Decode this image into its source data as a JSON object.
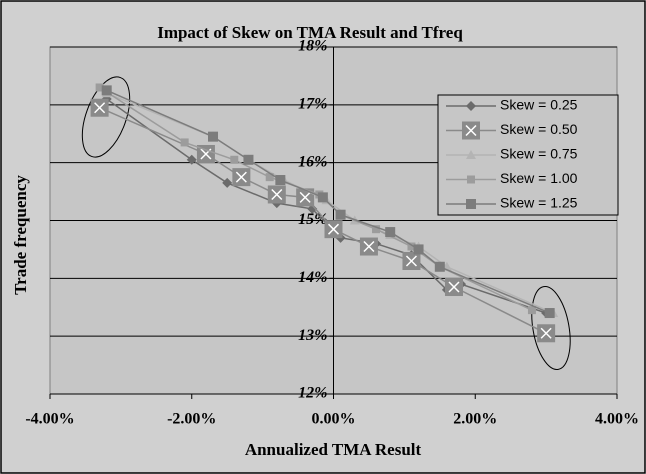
{
  "chart_data": {
    "type": "line",
    "title": "Impact of Skew on TMA Result and Tfreq",
    "x_label": "Annualized TMA Result",
    "y_label": "Trade   frequency",
    "xlim": [
      -4,
      4
    ],
    "xticks": [
      {
        "value": -4,
        "label": "-4.00%"
      },
      {
        "value": -2,
        "label": "-2.00%"
      },
      {
        "value": 0,
        "label": "0.00%"
      },
      {
        "value": 2,
        "label": "2.00%"
      },
      {
        "value": 4,
        "label": "4.00%"
      }
    ],
    "ylim": [
      12,
      18
    ],
    "yticks": [
      {
        "value": 12,
        "label": "12%"
      },
      {
        "value": 13,
        "label": "13%"
      },
      {
        "value": 14,
        "label": "14%"
      },
      {
        "value": 15,
        "label": "15%"
      },
      {
        "value": 16,
        "label": "16%"
      },
      {
        "value": 17,
        "label": "17%"
      },
      {
        "value": 18,
        "label": "18%"
      }
    ],
    "grid": true,
    "legend": "upper right",
    "series": [
      {
        "name": "Skew = 0.25",
        "color": "#6b6b6b",
        "marker": "diamond",
        "x": [
          -3.2,
          -2.0,
          -1.5,
          -0.8,
          -0.3,
          0.1,
          0.6,
          1.1,
          1.6,
          1.8,
          3.0
        ],
        "values": [
          17.1,
          16.05,
          15.65,
          15.3,
          15.2,
          14.7,
          14.6,
          14.4,
          13.8,
          13.9,
          13.4
        ]
      },
      {
        "name": "Skew = 0.50",
        "color": "#8a8a8a",
        "marker": "square-x",
        "x": [
          -3.3,
          -1.8,
          -1.3,
          -0.8,
          -0.4,
          0.0,
          0.5,
          1.1,
          1.7,
          3.0
        ],
        "values": [
          16.95,
          16.15,
          15.75,
          15.45,
          15.4,
          14.85,
          14.55,
          14.3,
          13.85,
          13.05
        ]
      },
      {
        "name": "Skew = 0.75",
        "color": "#b4b4b4",
        "marker": "triangle",
        "x": [
          -3.2,
          -1.7,
          -1.2,
          -0.7,
          -0.1,
          0.3,
          0.8,
          1.2,
          1.6,
          3.1
        ],
        "values": [
          17.2,
          16.45,
          16.05,
          15.7,
          15.35,
          15.0,
          14.75,
          14.55,
          14.2,
          13.4
        ]
      },
      {
        "name": "Skew = 1.00",
        "color": "#9c9c9c",
        "marker": "small-square",
        "x": [
          -3.3,
          -2.1,
          -1.4,
          -0.9,
          -0.2,
          0.1,
          0.6,
          1.1,
          1.5,
          2.8
        ],
        "values": [
          17.3,
          16.35,
          16.05,
          15.75,
          15.45,
          15.1,
          14.85,
          14.55,
          14.2,
          13.45
        ]
      },
      {
        "name": "Skew = 1.25",
        "color": "#7c7c7c",
        "marker": "square",
        "x": [
          -3.2,
          -1.7,
          -1.2,
          -0.75,
          -0.15,
          0.1,
          0.8,
          1.2,
          1.5,
          3.05
        ],
        "values": [
          17.25,
          16.45,
          16.05,
          15.7,
          15.4,
          15.1,
          14.8,
          14.5,
          14.2,
          13.4
        ]
      }
    ]
  }
}
